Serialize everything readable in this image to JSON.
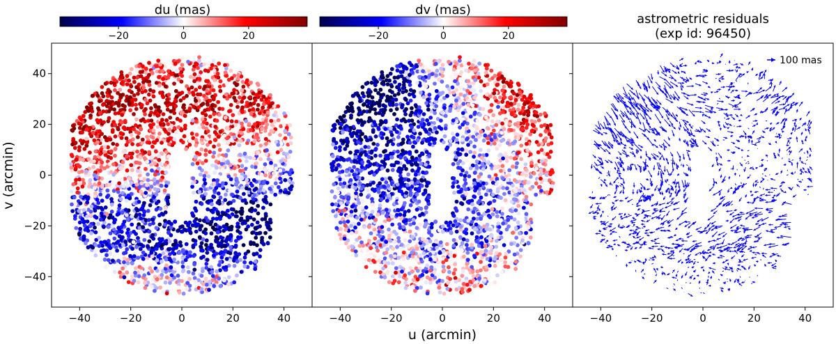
{
  "chart_data": {
    "type": "scatter",
    "shared_axes": {
      "xlabel": "u (arcmin)",
      "ylabel": "v (arcmin)",
      "xlim": [
        -51,
        51
      ],
      "ylim": [
        -52,
        52
      ],
      "xticks": [
        -40,
        -20,
        0,
        20,
        40
      ],
      "yticks": [
        -40,
        -20,
        0,
        20,
        40
      ],
      "xtick_labels": [
        "−40",
        "−20",
        "0",
        "20",
        "40"
      ],
      "ytick_labels": [
        "−40",
        "−20",
        "0",
        "20",
        "40"
      ]
    },
    "panels": [
      {
        "id": "du",
        "type": "scatter",
        "colorbar": {
          "label": "du (mas)",
          "range": [
            -38,
            38
          ],
          "ticks": [
            -20,
            0,
            20
          ],
          "tick_labels": [
            "−20",
            "0",
            "20"
          ],
          "colormap": "seismic"
        }
      },
      {
        "id": "dv",
        "type": "scatter",
        "colorbar": {
          "label": "dv (mas)",
          "range": [
            -38,
            38
          ],
          "ticks": [
            -20,
            0,
            20
          ],
          "tick_labels": [
            "−20",
            "0",
            "20"
          ],
          "colormap": "seismic"
        }
      },
      {
        "id": "quiver",
        "type": "quiver",
        "title_line1": "astrometric residuals",
        "title_line2": "(exp id: 96450)",
        "key_label": "100 mas",
        "arrow_color": "#0000ff"
      }
    ]
  }
}
